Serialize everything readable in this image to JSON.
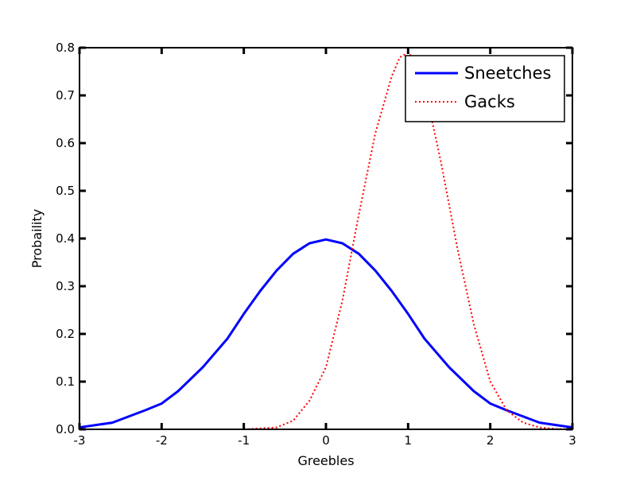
{
  "chart_data": {
    "type": "line",
    "title": "",
    "xlabel": "Greebles",
    "ylabel": "Probaility",
    "xlim": [
      -3,
      3
    ],
    "ylim": [
      0.0,
      0.8
    ],
    "x_ticks": [
      -3,
      -2,
      -1,
      0,
      1,
      2,
      3
    ],
    "y_ticks": [
      0.0,
      0.1,
      0.2,
      0.3,
      0.4,
      0.5,
      0.6,
      0.7,
      0.8
    ],
    "x_tick_labels": [
      "-3",
      "-2",
      "-1",
      "0",
      "1",
      "2",
      "3"
    ],
    "y_tick_labels": [
      "0.0",
      "0.1",
      "0.2",
      "0.3",
      "0.4",
      "0.5",
      "0.6",
      "0.7",
      "0.8"
    ],
    "grid": false,
    "legend_position": "top-right",
    "series": [
      {
        "name": "Sneetches",
        "color": "#0000ff",
        "style": "solid",
        "x": [
          -3.0,
          -2.6,
          -2.2,
          -2.0,
          -1.8,
          -1.5,
          -1.2,
          -1.0,
          -0.8,
          -0.6,
          -0.4,
          -0.2,
          0.0,
          0.2,
          0.4,
          0.6,
          0.8,
          1.0,
          1.2,
          1.5,
          1.8,
          2.0,
          2.2,
          2.6,
          3.0
        ],
        "values": [
          0.004,
          0.014,
          0.04,
          0.054,
          0.08,
          0.13,
          0.19,
          0.242,
          0.29,
          0.333,
          0.368,
          0.39,
          0.398,
          0.39,
          0.368,
          0.333,
          0.29,
          0.242,
          0.19,
          0.13,
          0.08,
          0.054,
          0.04,
          0.014,
          0.004
        ]
      },
      {
        "name": "Gacks",
        "color": "#ff0000",
        "style": "dotted",
        "x": [
          -1.0,
          -0.6,
          -0.4,
          -0.2,
          0.0,
          0.2,
          0.4,
          0.6,
          0.8,
          0.9,
          1.0,
          1.1,
          1.2,
          1.4,
          1.6,
          1.8,
          2.0,
          2.2,
          2.4,
          2.6,
          2.8,
          3.0
        ],
        "values": [
          0.0,
          0.004,
          0.018,
          0.06,
          0.13,
          0.27,
          0.45,
          0.62,
          0.74,
          0.78,
          0.79,
          0.77,
          0.72,
          0.56,
          0.38,
          0.22,
          0.1,
          0.04,
          0.014,
          0.004,
          0.001,
          0.0
        ]
      }
    ]
  }
}
